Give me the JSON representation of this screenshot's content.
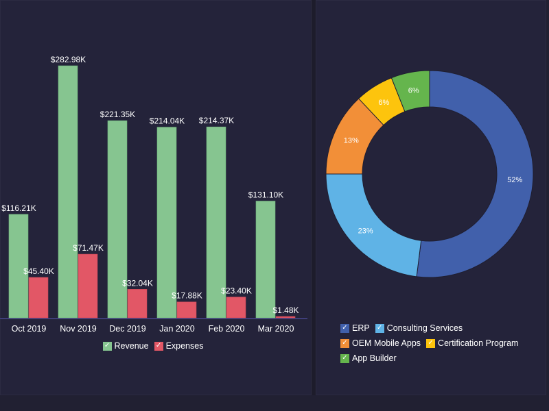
{
  "chart_data": [
    {
      "type": "bar",
      "title": "",
      "xlabel": "",
      "ylabel": "",
      "categories": [
        "Oct 2019",
        "Nov 2019",
        "Dec 2019",
        "Jan 2020",
        "Feb 2020",
        "Mar 2020"
      ],
      "series": [
        {
          "name": "Revenue",
          "color": "#86c590",
          "values": [
            116.21,
            282.98,
            221.35,
            214.04,
            214.37,
            131.1
          ],
          "labels": [
            "$116.21K",
            "$282.98K",
            "$221.35K",
            "$214.04K",
            "$214.37K",
            "$131.10K"
          ]
        },
        {
          "name": "Expenses",
          "color": "#e25766",
          "values": [
            45.4,
            71.47,
            32.04,
            17.88,
            23.4,
            1.48
          ],
          "labels": [
            "$45.40K",
            "$71.47K",
            "$32.04K",
            "$17.88K",
            "$23.40K",
            "$1.48K"
          ]
        }
      ],
      "value_unit": "K USD",
      "ylim": [
        0,
        300
      ],
      "grid": false,
      "legend": "bottom-center"
    },
    {
      "type": "pie",
      "variant": "donut",
      "title": "",
      "slices": [
        {
          "name": "ERP",
          "value": 52,
          "label": "52%",
          "color": "#4160ab"
        },
        {
          "name": "Consulting Services",
          "value": 23,
          "label": "23%",
          "color": "#5fb3e6"
        },
        {
          "name": "OEM Mobile Apps",
          "value": 13,
          "label": "13%",
          "color": "#f28f38"
        },
        {
          "name": "Certification Program",
          "value": 6,
          "label": "6%",
          "color": "#fdc40d"
        },
        {
          "name": "App Builder",
          "value": 6,
          "label": "6%",
          "color": "#65b54d"
        }
      ],
      "legend": "bottom"
    }
  ],
  "legend_check_glyph": "✓",
  "colors": {
    "background": "#212032",
    "panel": "#24233a",
    "axis": "#3f3e7a"
  }
}
